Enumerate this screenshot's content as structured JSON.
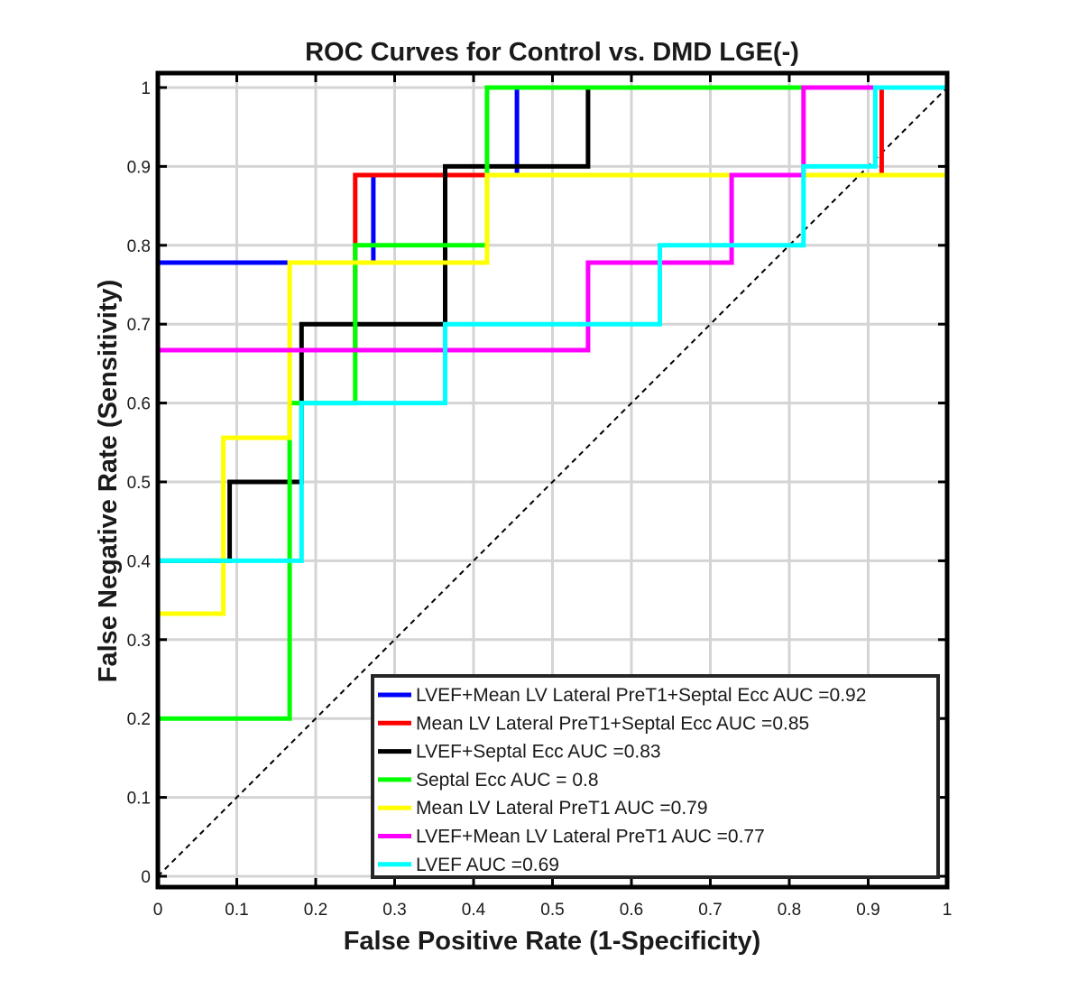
{
  "chart_data": {
    "type": "line",
    "title": "ROC Curves for Control vs. DMD LGE(-)",
    "xlabel": "False Positive Rate (1-Specificity)",
    "ylabel": "False Negative Rate (Sensitivity)",
    "xlim": [
      0,
      1
    ],
    "ylim": [
      0,
      1
    ],
    "xticks": [
      "0",
      "0.1",
      "0.2",
      "0.3",
      "0.4",
      "0.5",
      "0.6",
      "0.7",
      "0.8",
      "0.9",
      "1"
    ],
    "yticks": [
      "0",
      "0.1",
      "0.2",
      "0.3",
      "0.4",
      "0.5",
      "0.6",
      "0.7",
      "0.8",
      "0.9",
      "1"
    ],
    "grid": true,
    "legend_position": "bottom-right",
    "reference_line": {
      "style": "dashed",
      "color": "#000000",
      "points": [
        [
          0,
          0
        ],
        [
          1,
          1
        ]
      ]
    },
    "series": [
      {
        "name": "LVEF+Mean LV Lateral PreT1+Septal Ecc AUC =0.92",
        "color": "#0000ff",
        "points": [
          [
            0,
            0
          ],
          [
            0,
            0.778
          ],
          [
            0.167,
            0.778
          ],
          [
            0.167,
            0.778
          ],
          [
            0.273,
            0.778
          ],
          [
            0.273,
            0.889
          ],
          [
            0.455,
            0.889
          ],
          [
            0.455,
            1
          ],
          [
            0.545,
            1
          ],
          [
            1,
            1
          ]
        ]
      },
      {
        "name": "Mean LV Lateral PreT1+Septal Ecc AUC =0.85",
        "color": "#ff0000",
        "points": [
          [
            0,
            0
          ],
          [
            0,
            0.667
          ],
          [
            0.25,
            0.667
          ],
          [
            0.25,
            0.889
          ],
          [
            0.917,
            0.889
          ],
          [
            0.917,
            1
          ],
          [
            1,
            1
          ]
        ]
      },
      {
        "name": "LVEF+Septal Ecc AUC =0.83",
        "color": "#000000",
        "points": [
          [
            0,
            0
          ],
          [
            0,
            0.4
          ],
          [
            0.091,
            0.4
          ],
          [
            0.091,
            0.5
          ],
          [
            0.182,
            0.5
          ],
          [
            0.182,
            0.7
          ],
          [
            0.364,
            0.7
          ],
          [
            0.364,
            0.9
          ],
          [
            0.545,
            0.9
          ],
          [
            0.545,
            1
          ],
          [
            1,
            1
          ]
        ]
      },
      {
        "name": "Septal Ecc AUC = 0.8",
        "color": "#00ff00",
        "points": [
          [
            0,
            0
          ],
          [
            0,
            0.2
          ],
          [
            0.167,
            0.2
          ],
          [
            0.167,
            0.6
          ],
          [
            0.25,
            0.6
          ],
          [
            0.25,
            0.8
          ],
          [
            0.417,
            0.8
          ],
          [
            0.417,
            1
          ],
          [
            0.818,
            1
          ],
          [
            1,
            1
          ]
        ]
      },
      {
        "name": "Mean LV Lateral PreT1 AUC =0.79",
        "color": "#ffff00",
        "points": [
          [
            0,
            0
          ],
          [
            0,
            0.333
          ],
          [
            0.083,
            0.333
          ],
          [
            0.083,
            0.556
          ],
          [
            0.167,
            0.556
          ],
          [
            0.167,
            0.778
          ],
          [
            0.417,
            0.778
          ],
          [
            0.417,
            0.889
          ],
          [
            1,
            0.889
          ],
          [
            1,
            1
          ]
        ]
      },
      {
        "name": "LVEF+Mean LV Lateral PreT1 AUC =0.77",
        "color": "#ff00ff",
        "points": [
          [
            0,
            0
          ],
          [
            0,
            0.667
          ],
          [
            0.545,
            0.667
          ],
          [
            0.545,
            0.778
          ],
          [
            0.727,
            0.778
          ],
          [
            0.727,
            0.889
          ],
          [
            0.818,
            0.889
          ],
          [
            0.818,
            1
          ],
          [
            1,
            1
          ]
        ]
      },
      {
        "name": "LVEF AUC =0.69",
        "color": "#00ffff",
        "points": [
          [
            0,
            0
          ],
          [
            0,
            0.4
          ],
          [
            0.182,
            0.4
          ],
          [
            0.182,
            0.6
          ],
          [
            0.364,
            0.6
          ],
          [
            0.364,
            0.7
          ],
          [
            0.636,
            0.7
          ],
          [
            0.636,
            0.8
          ],
          [
            0.818,
            0.8
          ],
          [
            0.818,
            0.9
          ],
          [
            0.909,
            0.9
          ],
          [
            0.909,
            1
          ],
          [
            1,
            1
          ]
        ]
      }
    ]
  }
}
